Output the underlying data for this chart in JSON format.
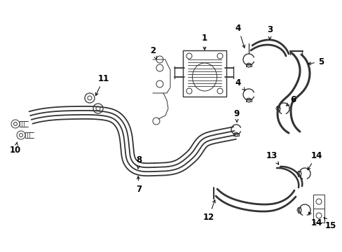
{
  "bg_color": "#ffffff",
  "line_color": "#333333",
  "label_color": "#000000",
  "lw_hose": 1.8,
  "lw_part": 1.0,
  "lw_thin": 0.7,
  "figsize": [
    4.89,
    3.6
  ],
  "dpi": 100
}
